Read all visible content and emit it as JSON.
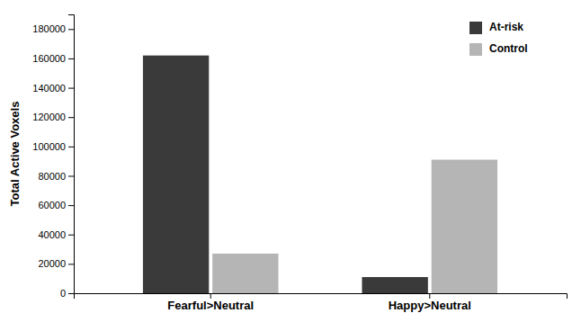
{
  "chart_data": {
    "type": "bar",
    "categories": [
      "Fearful>Neutral",
      "Happy>Neutral"
    ],
    "series": [
      {
        "name": "At-risk",
        "color": "#3a3a3a",
        "values": [
          162000,
          11000
        ]
      },
      {
        "name": "Control",
        "color": "#b5b5b5",
        "values": [
          27000,
          91000
        ]
      }
    ],
    "y_label": "Total Active Voxels",
    "ylim": [
      0,
      190000
    ],
    "yticks": [
      0,
      20000,
      40000,
      60000,
      80000,
      100000,
      120000,
      140000,
      160000,
      180000
    ],
    "grid": false,
    "legend": "upper right"
  }
}
